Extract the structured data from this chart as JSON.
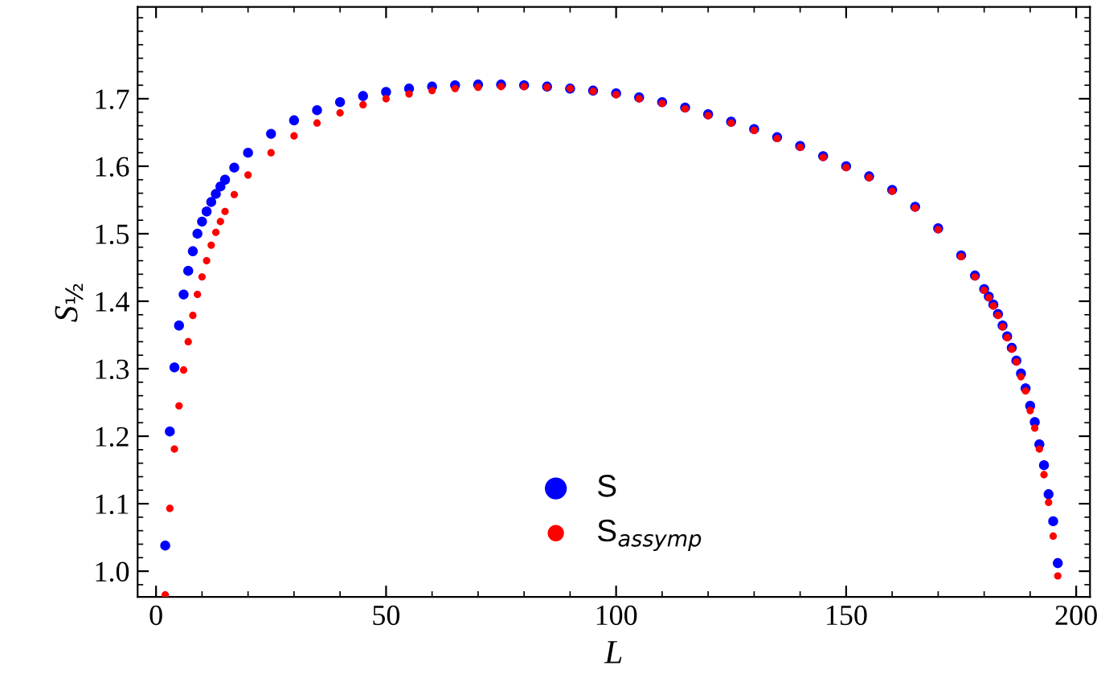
{
  "chart_data": {
    "type": "scatter",
    "xlabel": "L",
    "ylabel": "S$_{½}$",
    "xlim": [
      -4,
      203
    ],
    "ylim": [
      0.962,
      1.836
    ],
    "xticks": [
      0,
      50,
      100,
      150,
      200
    ],
    "yticks": [
      {
        "value": 1.0,
        "label": "1.0"
      },
      1.1,
      1.2,
      1.3,
      1.4,
      1.5,
      1.6,
      1.7
    ],
    "grid": false,
    "legend": "bottom",
    "marker": "circle",
    "series": [
      {
        "name": "S",
        "color": "#0000ff",
        "x": [
          2,
          3,
          4,
          5,
          6,
          7,
          8,
          9,
          10,
          11,
          12,
          13,
          14,
          15,
          17,
          20,
          25,
          30,
          35,
          40,
          45,
          50,
          55,
          60,
          65,
          70,
          75,
          80,
          85,
          90,
          95,
          100,
          105,
          110,
          115,
          120,
          125,
          130,
          135,
          140,
          145,
          150,
          155,
          160,
          165,
          170,
          175,
          178,
          180,
          181,
          182,
          183,
          184,
          185,
          186,
          187,
          188,
          189,
          190,
          191,
          192,
          193,
          194,
          195,
          196
        ],
        "values": [
          1.038,
          1.207,
          1.302,
          1.364,
          1.41,
          1.445,
          1.474,
          1.5,
          1.518,
          1.533,
          1.547,
          1.559,
          1.57,
          1.58,
          1.598,
          1.62,
          1.648,
          1.668,
          1.683,
          1.695,
          1.704,
          1.71,
          1.715,
          1.718,
          1.72,
          1.721,
          1.721,
          1.72,
          1.718,
          1.715,
          1.712,
          1.708,
          1.702,
          1.695,
          1.687,
          1.677,
          1.666,
          1.655,
          1.643,
          1.63,
          1.615,
          1.6,
          1.585,
          1.565,
          1.54,
          1.508,
          1.468,
          1.438,
          1.418,
          1.407,
          1.395,
          1.381,
          1.364,
          1.348,
          1.331,
          1.312,
          1.293,
          1.271,
          1.245,
          1.221,
          1.188,
          1.157,
          1.114,
          1.074,
          1.012
        ]
      },
      {
        "name": "S$_{assymp}$",
        "color": "#ff0000",
        "x": [
          2,
          3,
          4,
          5,
          6,
          7,
          8,
          9,
          10,
          11,
          12,
          13,
          14,
          15,
          17,
          20,
          25,
          30,
          35,
          40,
          45,
          50,
          55,
          60,
          65,
          70,
          75,
          80,
          85,
          90,
          95,
          100,
          105,
          110,
          115,
          120,
          125,
          130,
          135,
          140,
          145,
          150,
          155,
          160,
          165,
          170,
          175,
          178,
          180,
          181,
          182,
          183,
          184,
          185,
          186,
          187,
          188,
          189,
          190,
          191,
          192,
          193,
          194,
          195,
          196
        ],
        "values": [
          0.965,
          1.093,
          1.181,
          1.245,
          1.298,
          1.34,
          1.379,
          1.41,
          1.436,
          1.46,
          1.483,
          1.502,
          1.518,
          1.533,
          1.558,
          1.587,
          1.62,
          1.645,
          1.664,
          1.679,
          1.691,
          1.7,
          1.707,
          1.712,
          1.715,
          1.717,
          1.718,
          1.718,
          1.717,
          1.715,
          1.711,
          1.706,
          1.7,
          1.693,
          1.685,
          1.675,
          1.664,
          1.653,
          1.641,
          1.628,
          1.613,
          1.598,
          1.583,
          1.563,
          1.538,
          1.506,
          1.466,
          1.436,
          1.416,
          1.405,
          1.393,
          1.379,
          1.362,
          1.346,
          1.329,
          1.31,
          1.288,
          1.267,
          1.238,
          1.212,
          1.181,
          1.143,
          1.102,
          1.052,
          0.993
        ]
      }
    ]
  }
}
